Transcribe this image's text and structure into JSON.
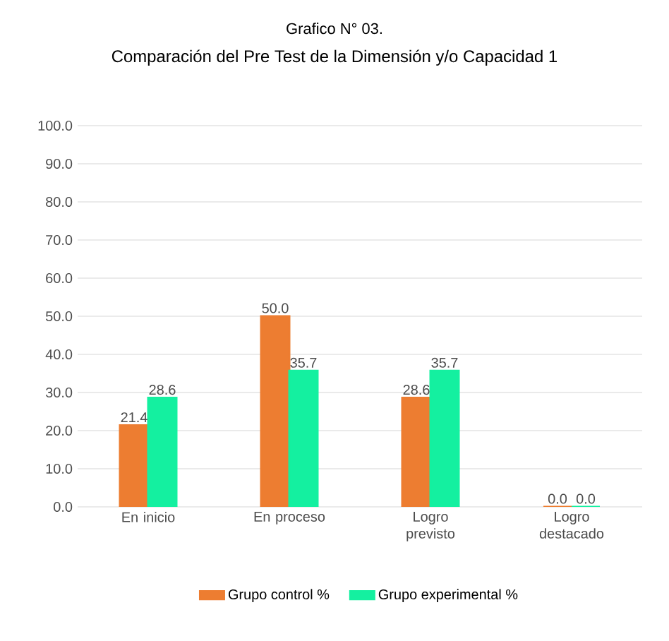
{
  "chart_data": {
    "type": "bar",
    "title": "Grafico N° 03.",
    "subtitle": "Comparación del Pre Test de la Dimensión y/o Capacidad 1",
    "categories": [
      "En inicio",
      "En proceso",
      "Logro previsto",
      "Logro destacado"
    ],
    "series": [
      {
        "name": "Grupo control %",
        "color": "#ed7d31",
        "values": [
          21.4,
          50.0,
          28.6,
          0.0
        ],
        "value_labels": [
          "21.4",
          "50.0",
          "28.6",
          "0.0"
        ]
      },
      {
        "name": "Grupo experimental %",
        "color": "#14f0a0",
        "values": [
          28.6,
          35.7,
          35.7,
          0.0
        ],
        "value_labels": [
          "28.6",
          "35.7",
          "35.7",
          "0.0"
        ]
      }
    ],
    "ylim": [
      0,
      100
    ],
    "yticks": [
      {
        "value": 0,
        "label": "0.0"
      },
      {
        "value": 10,
        "label": "10.0"
      },
      {
        "value": 20,
        "label": "20.0"
      },
      {
        "value": 30,
        "label": "30.0"
      },
      {
        "value": 40,
        "label": "40.0"
      },
      {
        "value": 50,
        "label": "50.0"
      },
      {
        "value": 60,
        "label": "60.0"
      },
      {
        "value": 70,
        "label": "70.0"
      },
      {
        "value": 80,
        "label": "80.0"
      },
      {
        "value": 90,
        "label": "90.0"
      },
      {
        "value": 100,
        "label": "100.0"
      }
    ],
    "grid": "y",
    "legend": "bottom"
  }
}
